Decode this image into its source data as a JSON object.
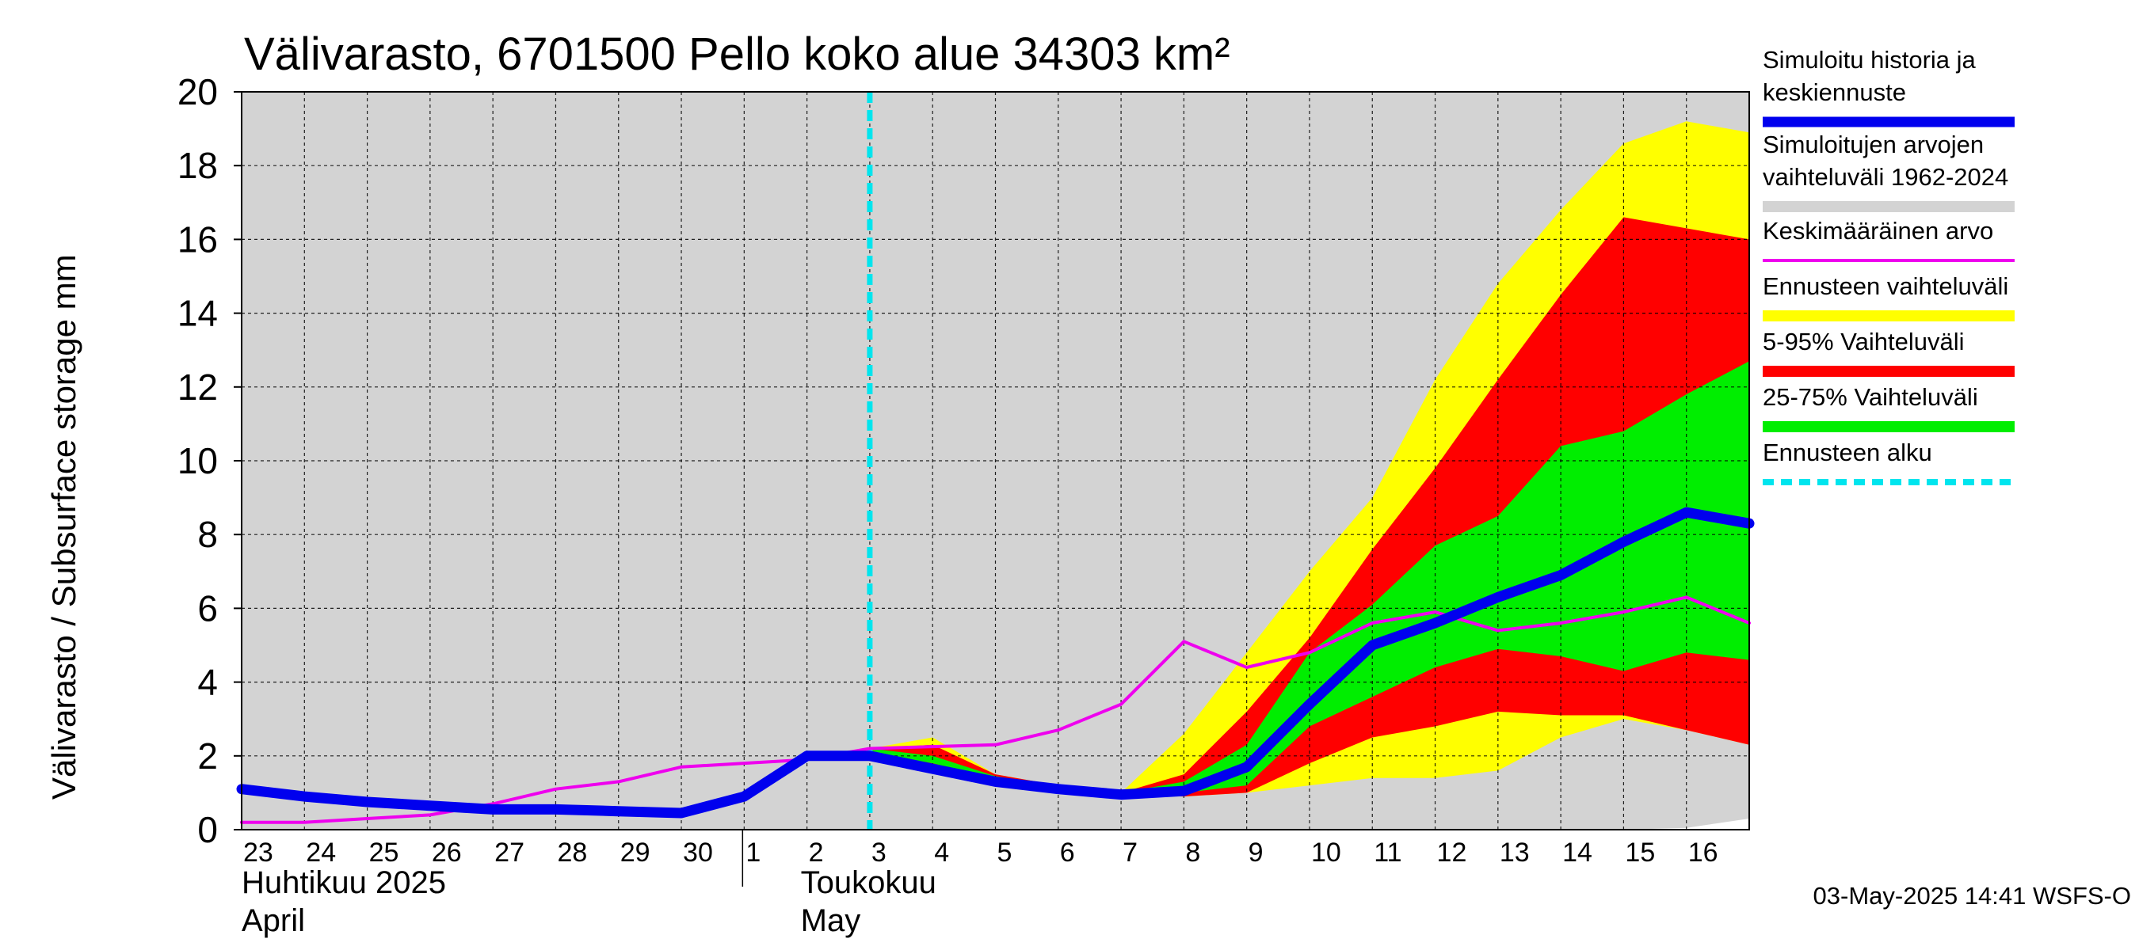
{
  "chart_data": {
    "type": "area",
    "title": "Välivarasto, 6701500 Pello koko alue 34303 km²",
    "ylabel": "Välivarasto / Subsurface storage  mm",
    "ylim": [
      0,
      20
    ],
    "y_ticks": [
      "0",
      "2",
      "4",
      "6",
      "8",
      "10",
      "12",
      "14",
      "16",
      "18",
      "20"
    ],
    "x_tick_labels": [
      "23",
      "24",
      "25",
      "26",
      "27",
      "28",
      "29",
      "30",
      "1",
      "2",
      "3",
      "4",
      "5",
      "6",
      "7",
      "8",
      "9",
      "10",
      "11",
      "12",
      "13",
      "14",
      "15",
      "16"
    ],
    "months": [
      {
        "fi": "Huhtikuu  2025",
        "en": "April"
      },
      {
        "fi": "Toukokuu",
        "en": "May"
      }
    ],
    "x": [
      "2025-04-23",
      "2025-04-24",
      "2025-04-25",
      "2025-04-26",
      "2025-04-27",
      "2025-04-28",
      "2025-04-29",
      "2025-04-30",
      "2025-05-01",
      "2025-05-02",
      "2025-05-03",
      "2025-05-04",
      "2025-05-05",
      "2025-05-06",
      "2025-05-07",
      "2025-05-08",
      "2025-05-09",
      "2025-05-10",
      "2025-05-11",
      "2025-05-12",
      "2025-05-13",
      "2025-05-14",
      "2025-05-15",
      "2025-05-16",
      "2025-05-17"
    ],
    "forecast_start": "2025-05-03",
    "grid": true,
    "legend_position": "right",
    "series": [
      {
        "name": "Simuloitujen arvojen vaihteluväli 1962-2024",
        "kind": "band",
        "color": "#d3d3d3",
        "low": [
          0,
          0,
          0,
          0,
          0,
          0,
          0,
          0,
          0,
          0,
          0,
          0,
          0,
          0,
          0,
          0,
          0,
          0,
          0,
          0,
          0,
          0,
          0,
          0.05,
          0.3
        ],
        "high": [
          20,
          20,
          20,
          20,
          20,
          20,
          20,
          20,
          20,
          20,
          20,
          20,
          20,
          20,
          20,
          20,
          20,
          20,
          20,
          20,
          20,
          20,
          20,
          20,
          20
        ]
      },
      {
        "name": "Ennusteen vaihteluväli",
        "kind": "band",
        "color": "#ffff00",
        "low": [
          null,
          null,
          null,
          null,
          null,
          null,
          null,
          null,
          null,
          null,
          2.1,
          1.7,
          1.35,
          1.15,
          0.95,
          0.9,
          1.0,
          1.2,
          1.4,
          1.4,
          1.6,
          2.5,
          3.0,
          2.7,
          2.3
        ],
        "high": [
          null,
          null,
          null,
          null,
          null,
          null,
          null,
          null,
          null,
          null,
          2.2,
          2.5,
          1.5,
          1.2,
          1.0,
          2.6,
          4.8,
          7.0,
          9.0,
          12.2,
          14.8,
          16.8,
          18.6,
          19.2,
          18.9
        ]
      },
      {
        "name": "5-95% Vaihteluväli",
        "kind": "band",
        "color": "#ff0000",
        "low": [
          null,
          null,
          null,
          null,
          null,
          null,
          null,
          null,
          null,
          null,
          2.1,
          1.75,
          1.35,
          1.15,
          0.95,
          0.9,
          1.0,
          1.8,
          2.5,
          2.8,
          3.2,
          3.1,
          3.1,
          2.7,
          2.3
        ],
        "high": [
          null,
          null,
          null,
          null,
          null,
          null,
          null,
          null,
          null,
          null,
          2.2,
          2.3,
          1.5,
          1.2,
          1.0,
          1.5,
          3.2,
          5.2,
          7.6,
          9.8,
          12.2,
          14.5,
          16.6,
          16.3,
          16.0
        ]
      },
      {
        "name": "25-75% Vaihteluväli",
        "kind": "band",
        "color": "#00ee00",
        "low": [
          null,
          null,
          null,
          null,
          null,
          null,
          null,
          null,
          null,
          null,
          2.1,
          1.8,
          1.38,
          1.15,
          0.95,
          1.0,
          1.2,
          2.8,
          3.6,
          4.4,
          4.9,
          4.7,
          4.3,
          4.8,
          4.6
        ],
        "high": [
          null,
          null,
          null,
          null,
          null,
          null,
          null,
          null,
          null,
          null,
          2.2,
          2.0,
          1.45,
          1.18,
          1.0,
          1.3,
          2.3,
          4.8,
          6.1,
          7.7,
          8.5,
          10.4,
          10.8,
          11.8,
          12.7
        ]
      },
      {
        "name": "Keskimääräinen arvo",
        "kind": "line",
        "color": "#ee00ee",
        "values": [
          0.2,
          0.2,
          0.3,
          0.4,
          0.7,
          1.1,
          1.3,
          1.7,
          1.8,
          1.9,
          2.2,
          2.25,
          2.3,
          2.7,
          3.4,
          5.1,
          4.4,
          4.8,
          5.6,
          5.9,
          5.4,
          5.6,
          5.9,
          6.3,
          5.6
        ]
      },
      {
        "name": "Simuloitu historia ja keskiennuste",
        "kind": "line",
        "color": "#0000ee",
        "values": [
          1.1,
          0.9,
          0.75,
          0.65,
          0.55,
          0.55,
          0.5,
          0.45,
          0.9,
          2.0,
          2.0,
          1.65,
          1.3,
          1.1,
          0.95,
          1.05,
          1.7,
          3.4,
          5.0,
          5.6,
          6.3,
          6.9,
          7.8,
          8.6,
          8.3
        ]
      }
    ]
  },
  "legend": [
    {
      "label": "Simuloitu historia ja keskiennuste",
      "lines": [
        "Simuloitu historia ja",
        "keskiennuste"
      ],
      "color": "#0000ee",
      "style": "thick"
    },
    {
      "label": "Simuloitujen arvojen vaihteluväli 1962-2024",
      "lines": [
        "Simuloitujen arvojen",
        "vaihteluväli 1962-2024"
      ],
      "color": "#d3d3d3",
      "style": "band"
    },
    {
      "label": "Keskimääräinen arvo",
      "lines": [
        "Keskimääräinen arvo"
      ],
      "color": "#ee00ee",
      "style": "thin"
    },
    {
      "label": "Ennusteen vaihteluväli",
      "lines": [
        "Ennusteen vaihteluväli"
      ],
      "color": "#ffff00",
      "style": "band"
    },
    {
      "label": "5-95% Vaihteluväli",
      "lines": [
        "5-95% Vaihteluväli"
      ],
      "color": "#ff0000",
      "style": "band"
    },
    {
      "label": "25-75% Vaihteluväli",
      "lines": [
        "25-75% Vaihteluväli"
      ],
      "color": "#00ee00",
      "style": "band"
    },
    {
      "label": "Ennusteen alku",
      "lines": [
        "Ennusteen alku"
      ],
      "color": "#00e5ee",
      "style": "dashed"
    }
  ],
  "footer": {
    "timestamp": "03-May-2025 14:41 WSFS-O"
  }
}
